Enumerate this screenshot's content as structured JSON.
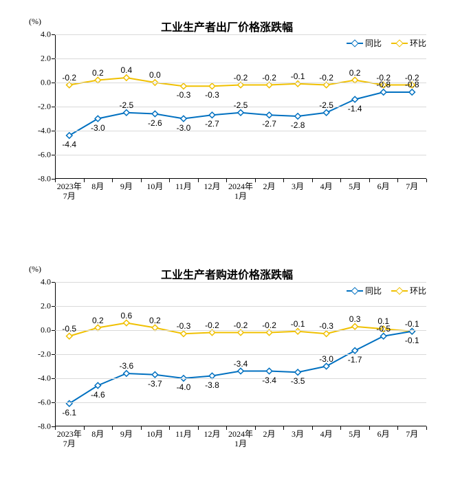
{
  "colors": {
    "series_yoy": "#0070c0",
    "series_mom": "#f0c000",
    "grid": "#d9d9d9",
    "axis": "#000000",
    "text": "#000000",
    "background": "#ffffff"
  },
  "chart_top": {
    "type": "line",
    "title": "工业生产者出厂价格涨跌幅",
    "yaxis_unit": "(%)",
    "ylim": [
      -8.0,
      4.0
    ],
    "ytick_step": 2.0,
    "yticks": [
      -8.0,
      -6.0,
      -4.0,
      -2.0,
      0.0,
      2.0,
      4.0
    ],
    "ytick_labels": [
      "-8.0",
      "-6.0",
      "-4.0",
      "-2.0",
      "0.0",
      "2.0",
      "4.0"
    ],
    "xtick_labels": [
      "2023年\n7月",
      "8月",
      "9月",
      "10月",
      "11月",
      "12月",
      "2024年\n1月",
      "2月",
      "3月",
      "4月",
      "5月",
      "6月",
      "7月"
    ],
    "legend": {
      "yoy": "同比",
      "mom": "环比"
    },
    "series_yoy": {
      "values": [
        -4.4,
        -3.0,
        -2.5,
        -2.6,
        -3.0,
        -2.7,
        -2.5,
        -2.7,
        -2.8,
        -2.5,
        -1.4,
        -0.8,
        -0.8
      ],
      "labels": [
        "-4.4",
        "-3.0",
        "-2.5",
        "-2.6",
        "-3.0",
        "-2.7",
        "-2.5",
        "-2.7",
        "-2.8",
        "-2.5",
        "-1.4",
        "-0.8",
        "-0.8"
      ],
      "label_side": [
        "below",
        "below",
        "above",
        "below",
        "below",
        "below",
        "above",
        "below",
        "below",
        "above",
        "below",
        "above",
        "above"
      ],
      "line_width": 2,
      "marker": "diamond",
      "marker_size": 6
    },
    "series_mom": {
      "values": [
        -0.2,
        0.2,
        0.4,
        0.0,
        -0.3,
        -0.3,
        -0.2,
        -0.2,
        -0.1,
        -0.2,
        0.2,
        -0.2,
        -0.2
      ],
      "labels": [
        "-0.2",
        "0.2",
        "0.4",
        "0.0",
        "-0.3",
        "-0.3",
        "-0.2",
        "-0.2",
        "-0.1",
        "-0.2",
        "0.2",
        "-0.2",
        "-0.2"
      ],
      "label_side": [
        "above",
        "above",
        "above",
        "above",
        "below",
        "below",
        "above",
        "above",
        "above",
        "above",
        "above",
        "above",
        "above"
      ],
      "line_width": 2,
      "marker": "diamond",
      "marker_size": 6
    }
  },
  "chart_bottom": {
    "type": "line",
    "title": "工业生产者购进价格涨跌幅",
    "yaxis_unit": "(%)",
    "ylim": [
      -8.0,
      4.0
    ],
    "ytick_step": 2.0,
    "yticks": [
      -8.0,
      -6.0,
      -4.0,
      -2.0,
      0.0,
      2.0,
      4.0
    ],
    "ytick_labels": [
      "-8.0",
      "-6.0",
      "-4.0",
      "-2.0",
      "0.0",
      "2.0",
      "4.0"
    ],
    "xtick_labels": [
      "2023年\n7月",
      "8月",
      "9月",
      "10月",
      "11月",
      "12月",
      "2024年\n1月",
      "2月",
      "3月",
      "4月",
      "5月",
      "6月",
      "7月"
    ],
    "legend": {
      "yoy": "同比",
      "mom": "环比"
    },
    "series_yoy": {
      "values": [
        -6.1,
        -4.6,
        -3.6,
        -3.7,
        -4.0,
        -3.8,
        -3.4,
        -3.4,
        -3.5,
        -3.0,
        -1.7,
        -0.5,
        -0.1
      ],
      "labels": [
        "-6.1",
        "-4.6",
        "-3.6",
        "-3.7",
        "-4.0",
        "-3.8",
        "-3.4",
        "-3.4",
        "-3.5",
        "-3.0",
        "-1.7",
        "-0.5",
        "-0.1"
      ],
      "label_side": [
        "below",
        "below",
        "above",
        "below",
        "below",
        "below",
        "above",
        "below",
        "below",
        "above",
        "below",
        "above",
        "below"
      ],
      "line_width": 2,
      "marker": "diamond",
      "marker_size": 6
    },
    "series_mom": {
      "values": [
        -0.5,
        0.2,
        0.6,
        0.2,
        -0.3,
        -0.2,
        -0.2,
        -0.2,
        -0.1,
        -0.3,
        0.3,
        0.1,
        -0.1
      ],
      "labels": [
        "-0.5",
        "0.2",
        "0.6",
        "0.2",
        "-0.3",
        "-0.2",
        "-0.2",
        "-0.2",
        "-0.1",
        "-0.3",
        "0.3",
        "0.1",
        "-0.1"
      ],
      "label_side": [
        "above",
        "above",
        "above",
        "above",
        "above",
        "above",
        "above",
        "above",
        "above",
        "above",
        "above",
        "above",
        "above"
      ],
      "line_width": 2,
      "marker": "diamond",
      "marker_size": 6
    }
  }
}
